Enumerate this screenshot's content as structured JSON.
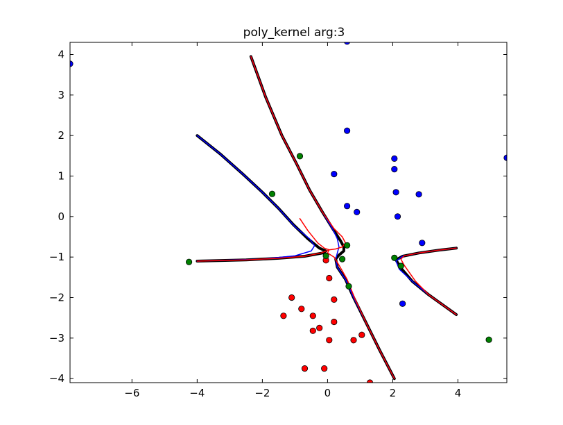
{
  "chart_data": {
    "type": "scatter",
    "title": "poly_kernel arg:3",
    "xlabel": "",
    "ylabel": "",
    "xlim": [
      -7.9,
      5.5
    ],
    "ylim": [
      -4.1,
      4.3
    ],
    "grid": false,
    "xticks": [
      -6,
      -4,
      -2,
      0,
      2,
      4
    ],
    "xtick_labels": [
      "−6",
      "−4",
      "−2",
      "0",
      "2",
      "4"
    ],
    "yticks": [
      -4,
      -3,
      -2,
      -1,
      0,
      1,
      2,
      3,
      4
    ],
    "ytick_labels": [
      "−4",
      "−3",
      "−2",
      "−1",
      "0",
      "1",
      "2",
      "3",
      "4"
    ],
    "colors": {
      "class_pos": "#0000ff",
      "class_neg": "#ff0000",
      "support_vectors": "#008000",
      "boundary": "#000000",
      "margin_pos": "#0000ff",
      "margin_neg": "#ff0000"
    },
    "series": [
      {
        "color": "#0000ff",
        "points": [
          [
            -7.9,
            3.77
          ],
          [
            0.6,
            4.32
          ],
          [
            0.6,
            2.12
          ],
          [
            0.2,
            1.05
          ],
          [
            0.6,
            0.26
          ],
          [
            0.9,
            0.11
          ],
          [
            2.05,
            1.43
          ],
          [
            2.05,
            1.17
          ],
          [
            2.1,
            0.6
          ],
          [
            2.15,
            0.0
          ],
          [
            2.8,
            0.55
          ],
          [
            2.9,
            -0.65
          ],
          [
            2.3,
            -2.15
          ],
          [
            5.5,
            1.45
          ]
        ]
      },
      {
        "color": "#ff0000",
        "points": [
          [
            -0.05,
            -1.08
          ],
          [
            0.05,
            -1.52
          ],
          [
            -1.1,
            -2.0
          ],
          [
            0.2,
            -2.05
          ],
          [
            -0.8,
            -2.28
          ],
          [
            -1.35,
            -2.45
          ],
          [
            -0.45,
            -2.45
          ],
          [
            0.2,
            -2.6
          ],
          [
            -0.25,
            -2.75
          ],
          [
            -0.45,
            -2.82
          ],
          [
            1.05,
            -2.92
          ],
          [
            0.05,
            -3.05
          ],
          [
            0.8,
            -3.05
          ],
          [
            -0.7,
            -3.75
          ],
          [
            -0.1,
            -3.75
          ],
          [
            1.3,
            -4.1
          ]
        ]
      },
      {
        "color": "#008000",
        "points": [
          [
            -0.85,
            1.49
          ],
          [
            -1.7,
            0.56
          ],
          [
            -4.25,
            -1.12
          ],
          [
            -0.05,
            -0.97
          ],
          [
            0.6,
            -0.71
          ],
          [
            0.45,
            -1.05
          ],
          [
            0.65,
            -1.72
          ],
          [
            2.05,
            -1.02
          ],
          [
            2.25,
            -1.22
          ],
          [
            4.95,
            -3.04
          ]
        ]
      }
    ],
    "curves": [
      {
        "role": "boundary",
        "color": "#000000",
        "width": 4,
        "paths": [
          [
            [
              -2.35,
              3.95
            ],
            [
              -1.9,
              2.95
            ],
            [
              -1.4,
              2.0
            ],
            [
              -0.95,
              1.3
            ],
            [
              -0.55,
              0.65
            ],
            [
              -0.15,
              0.1
            ],
            [
              0.2,
              -0.35
            ],
            [
              0.4,
              -0.6
            ],
            [
              0.5,
              -0.75
            ],
            [
              0.5,
              -0.85
            ],
            [
              0.35,
              -0.95
            ],
            [
              0.25,
              -1.05
            ],
            [
              0.3,
              -1.25
            ],
            [
              0.55,
              -1.55
            ],
            [
              0.8,
              -2.0
            ],
            [
              1.2,
              -2.65
            ],
            [
              1.6,
              -3.3
            ],
            [
              2.05,
              -4.0
            ]
          ],
          [
            [
              -4.0,
              2.0
            ],
            [
              -3.3,
              1.55
            ],
            [
              -2.6,
              1.05
            ],
            [
              -2.0,
              0.6
            ],
            [
              -1.5,
              0.2
            ],
            [
              -1.05,
              -0.2
            ],
            [
              -0.6,
              -0.55
            ],
            [
              -0.25,
              -0.78
            ],
            [
              -0.05,
              -0.85
            ],
            [
              -0.15,
              -0.9
            ],
            [
              -0.7,
              -0.98
            ],
            [
              -1.5,
              -1.03
            ],
            [
              -2.5,
              -1.07
            ],
            [
              -4.0,
              -1.1
            ]
          ],
          [
            [
              3.95,
              -0.78
            ],
            [
              3.4,
              -0.83
            ],
            [
              2.8,
              -0.9
            ],
            [
              2.3,
              -0.98
            ],
            [
              2.1,
              -1.07
            ],
            [
              2.25,
              -1.27
            ],
            [
              2.6,
              -1.6
            ],
            [
              3.1,
              -1.93
            ],
            [
              3.95,
              -2.42
            ]
          ]
        ]
      },
      {
        "role": "margin",
        "color": "#0000ff",
        "width": 1.5,
        "paths": [
          [
            [
              -2.35,
              3.95
            ],
            [
              -1.9,
              2.95
            ],
            [
              -1.4,
              2.0
            ],
            [
              -0.95,
              1.3
            ],
            [
              -0.55,
              0.65
            ],
            [
              -0.15,
              0.1
            ],
            [
              0.15,
              -0.3
            ],
            [
              0.3,
              -0.55
            ],
            [
              0.35,
              -0.75
            ],
            [
              0.3,
              -0.9
            ],
            [
              0.25,
              -1.05
            ],
            [
              0.3,
              -1.25
            ],
            [
              0.55,
              -1.55
            ],
            [
              0.8,
              -2.0
            ],
            [
              1.2,
              -2.65
            ],
            [
              1.6,
              -3.3
            ],
            [
              2.05,
              -4.0
            ]
          ],
          [
            [
              -4.0,
              2.0
            ],
            [
              -3.3,
              1.55
            ],
            [
              -2.6,
              1.05
            ],
            [
              -2.0,
              0.6
            ],
            [
              -1.5,
              0.2
            ],
            [
              -1.0,
              -0.25
            ],
            [
              -0.55,
              -0.55
            ],
            [
              -0.4,
              -0.72
            ],
            [
              -0.5,
              -0.85
            ],
            [
              -1.0,
              -0.97
            ],
            [
              -2.0,
              -1.05
            ],
            [
              -4.0,
              -1.1
            ]
          ],
          [
            [
              3.95,
              -0.78
            ],
            [
              3.4,
              -0.83
            ],
            [
              2.8,
              -0.9
            ],
            [
              2.3,
              -0.98
            ],
            [
              2.1,
              -1.1
            ],
            [
              2.2,
              -1.3
            ],
            [
              2.6,
              -1.6
            ],
            [
              3.1,
              -1.93
            ],
            [
              3.95,
              -2.42
            ]
          ]
        ]
      },
      {
        "role": "margin",
        "color": "#ff0000",
        "width": 1.5,
        "paths": [
          [
            [
              -2.35,
              3.95
            ],
            [
              -1.9,
              2.95
            ],
            [
              -1.4,
              2.0
            ],
            [
              -0.95,
              1.3
            ],
            [
              -0.55,
              0.65
            ],
            [
              -0.15,
              0.1
            ],
            [
              0.2,
              -0.3
            ],
            [
              0.45,
              -0.5
            ],
            [
              0.55,
              -0.65
            ],
            [
              0.45,
              -0.75
            ],
            [
              0.25,
              -0.8
            ],
            [
              0.05,
              -0.82
            ],
            [
              -0.1,
              -0.78
            ],
            [
              -0.3,
              -0.65
            ],
            [
              -0.6,
              -0.35
            ],
            [
              -0.85,
              -0.05
            ]
          ],
          [
            [
              0.05,
              -0.82
            ],
            [
              0.0,
              -0.9
            ],
            [
              0.2,
              -1.0
            ],
            [
              0.35,
              -1.2
            ],
            [
              0.6,
              -1.55
            ],
            [
              0.85,
              -2.05
            ],
            [
              1.2,
              -2.65
            ],
            [
              1.6,
              -3.3
            ],
            [
              2.05,
              -4.0
            ]
          ],
          [
            [
              -4.0,
              -1.1
            ],
            [
              -2.5,
              -1.07
            ],
            [
              -1.5,
              -1.03
            ],
            [
              -0.7,
              -0.98
            ],
            [
              -0.2,
              -0.9
            ],
            [
              0.05,
              -0.82
            ]
          ],
          [
            [
              3.95,
              -0.78
            ],
            [
              3.4,
              -0.83
            ],
            [
              2.8,
              -0.9
            ],
            [
              2.35,
              -0.97
            ],
            [
              2.25,
              -1.05
            ],
            [
              2.35,
              -1.2
            ],
            [
              2.7,
              -1.6
            ],
            [
              3.1,
              -1.93
            ],
            [
              3.95,
              -2.42
            ]
          ]
        ]
      }
    ]
  }
}
